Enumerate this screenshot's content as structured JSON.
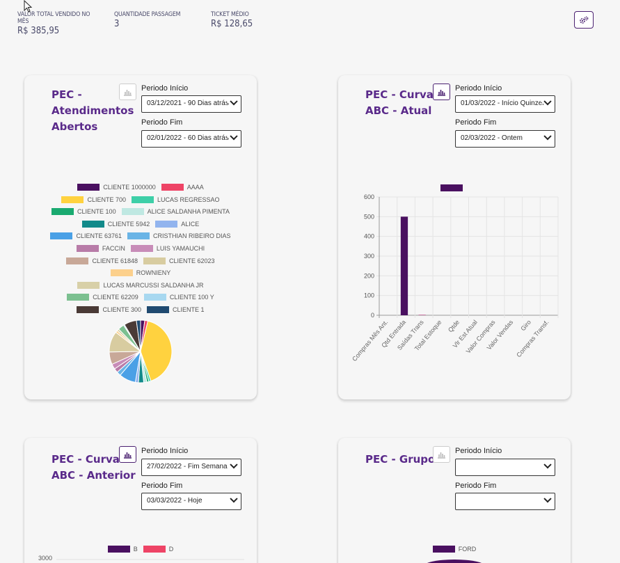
{
  "kpis": [
    {
      "label": "VALOR TOTAL VENDIDO NO MÊS",
      "value": "R$ 385,95"
    },
    {
      "label": "QUANTIDADE PASSAGEM",
      "value": "3"
    },
    {
      "label": "TICKET MÉDIO",
      "value": "R$ 128,65"
    }
  ],
  "config_button": {
    "icon": "gears-icon"
  },
  "common": {
    "periodo_inicio": "Periodo Início",
    "periodo_fim": "Periodo Fim"
  },
  "cards": {
    "atendimentos": {
      "title": "PEC - Atendimentos Abertos",
      "title_lines": [
        "PEC -",
        "Atendimentos",
        "Abertos"
      ],
      "inicio_value": "03/12/2021 - 90 Dias atrás",
      "fim_value": "02/01/2022 - 60 Dias atrás"
    },
    "curva_atual": {
      "title_lines": [
        "PEC - Curva",
        "ABC - Atual"
      ],
      "inicio_value": "01/03/2022 - Início Quinzena",
      "fim_value": "02/03/2022 - Ontem"
    },
    "curva_anterior": {
      "title_lines": [
        "PEC - Curva",
        "ABC - Anterior"
      ],
      "inicio_value": "27/02/2022 - Fim Semana",
      "fim_value": "03/03/2022 - Hoje",
      "legend": [
        {
          "name": "B",
          "color": "#4a1060"
        },
        {
          "name": "D",
          "color": "#ee4466"
        }
      ],
      "y_top_label": "3000"
    },
    "grupos": {
      "title_lines": [
        "PEC - Grupos"
      ],
      "inicio_value": "",
      "fim_value": "",
      "legend": [
        {
          "name": "FORD",
          "color": "#4a1060"
        }
      ]
    }
  },
  "chart_data": [
    {
      "type": "pie",
      "labels": [
        "CLIENTE 1000000",
        "AAAA",
        "CLIENTE 700",
        "LUCAS REGRESSAO",
        "CLIENTE 100",
        "ALICE SALDANHA PIMENTA",
        "CLIENTE 5942",
        "ALICE",
        "CLIENTE 63761",
        "CRISTHIAN RIBEIRO DIAS",
        "FACCIN",
        "LUIS YAMAUCHI",
        "CLIENTE 61848",
        "CLIENTE 62023",
        "ROWNIENY",
        "LUCAS MARCUSSI SALDANHA JR",
        "CLIENTE 62209",
        "CLIENTE 100 Y",
        "CLIENTE 300",
        "CLIENTE 1"
      ],
      "colors": [
        "#4a1060",
        "#ee4466",
        "#ffd23f",
        "#3ecfa8",
        "#1aaa70",
        "#bfe8e2",
        "#128a8a",
        "#92b4ee",
        "#4aa0e6",
        "#6ab4e6",
        "#b87ca8",
        "#c88cb8",
        "#c8a898",
        "#d8cca0",
        "#fcd08c",
        "#d8d0a8",
        "#7cc090",
        "#a8d8f0",
        "#4a3a36",
        "#204a70"
      ],
      "values": [
        2,
        1.5,
        38,
        1,
        1,
        1.5,
        2.5,
        1.5,
        8,
        2,
        2,
        2.5,
        6,
        10,
        1,
        1,
        3,
        0.5,
        6,
        2
      ]
    },
    {
      "type": "bar",
      "categories": [
        "Compras Mês Ant.",
        "Qtd Entrada",
        "Saídas Trans",
        "Total Estoque",
        "Qtde",
        "Vlr Est Atual",
        "Valor Compras",
        "Valor Vendas",
        "Giro",
        "Compras Transf."
      ],
      "series": [
        {
          "values": [
            0,
            500,
            3,
            0,
            0,
            0,
            0,
            0,
            0,
            0
          ],
          "color": "#4a1060"
        }
      ],
      "ylim": [
        0,
        600
      ],
      "yticks": [
        "600",
        "500",
        "400",
        "300",
        "200",
        "100",
        "0"
      ]
    }
  ]
}
